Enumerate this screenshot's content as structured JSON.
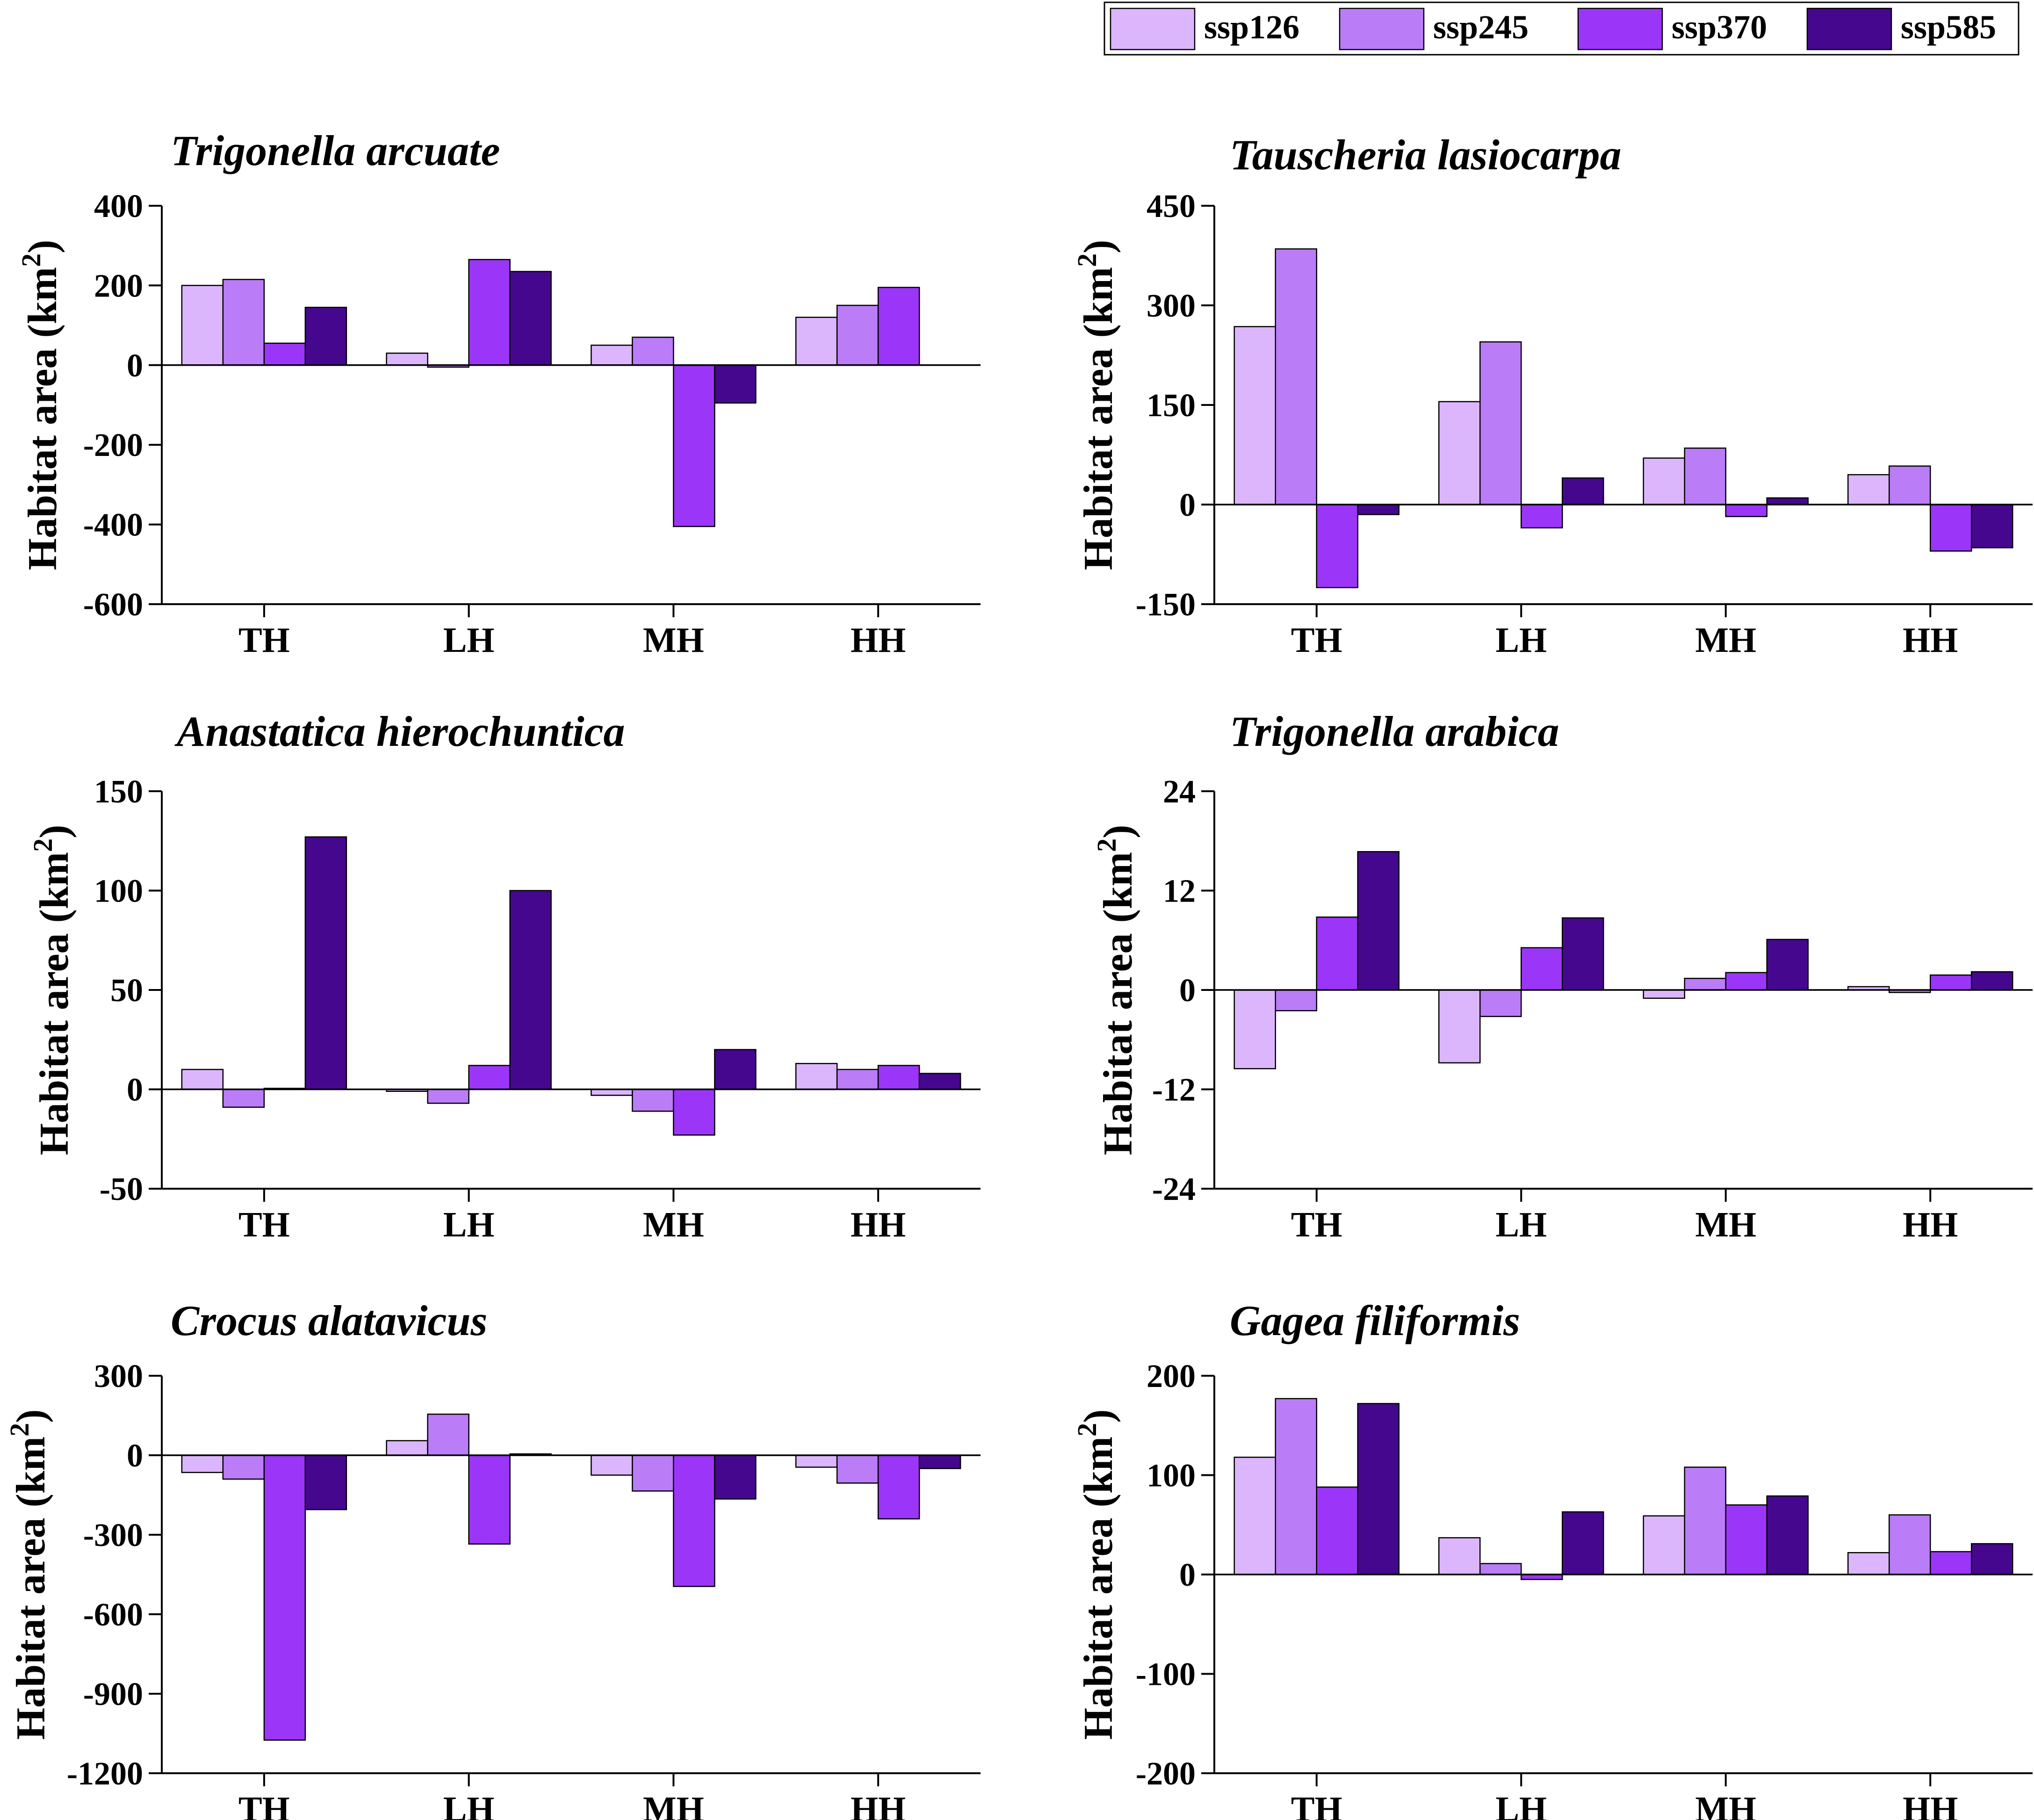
{
  "legend": {
    "entries": [
      {
        "name": "ssp126",
        "color": "#dcb6fc"
      },
      {
        "name": "ssp245",
        "color": "#bb7cf8"
      },
      {
        "name": "ssp370",
        "color": "#9b36f9"
      },
      {
        "name": "ssp585",
        "color": "#46078f"
      }
    ]
  },
  "chart_data": [
    {
      "type": "bar",
      "title": "Trigonella arcuate",
      "ylabel": "Habitat area (km",
      "ylabel_sup": "2",
      "ylabel_close": ")",
      "categories": [
        "TH",
        "LH",
        "MH",
        "HH"
      ],
      "ylim": [
        -600,
        400
      ],
      "yticks": [
        400,
        200,
        0,
        -200,
        -400,
        -600
      ],
      "series": [
        {
          "name": "ssp126",
          "values": [
            200,
            30,
            50,
            120
          ]
        },
        {
          "name": "ssp245",
          "values": [
            215,
            -5,
            70,
            150
          ]
        },
        {
          "name": "ssp370",
          "values": [
            55,
            265,
            -405,
            195
          ]
        },
        {
          "name": "ssp585",
          "values": [
            145,
            235,
            -95,
            0
          ]
        }
      ]
    },
    {
      "type": "bar",
      "title": "Tauscheria lasiocarpa",
      "ylabel": "Habitat area (km",
      "ylabel_sup": "2",
      "ylabel_close": ")",
      "categories": [
        "TH",
        "LH",
        "MH",
        "HH"
      ],
      "ylim": [
        -150,
        450
      ],
      "yticks": [
        450,
        300,
        150,
        0,
        -150
      ],
      "series": [
        {
          "name": "ssp126",
          "values": [
            268,
            155,
            70,
            45
          ]
        },
        {
          "name": "ssp245",
          "values": [
            385,
            245,
            85,
            58
          ]
        },
        {
          "name": "ssp370",
          "values": [
            -125,
            -35,
            -18,
            -70
          ]
        },
        {
          "name": "ssp585",
          "values": [
            -15,
            40,
            10,
            -65
          ]
        }
      ]
    },
    {
      "type": "bar",
      "title": "Anastatica hierochuntica",
      "ylabel": "Habitat area (km",
      "ylabel_sup": "2",
      "ylabel_close": ")",
      "categories": [
        "TH",
        "LH",
        "MH",
        "HH"
      ],
      "ylim": [
        -50,
        150
      ],
      "yticks": [
        150,
        100,
        50,
        0,
        -50
      ],
      "series": [
        {
          "name": "ssp126",
          "values": [
            10,
            -1,
            -3,
            13
          ]
        },
        {
          "name": "ssp245",
          "values": [
            -9,
            -7,
            -11,
            10
          ]
        },
        {
          "name": "ssp370",
          "values": [
            0.5,
            12,
            -23,
            12
          ]
        },
        {
          "name": "ssp585",
          "values": [
            127,
            100,
            20,
            8
          ]
        }
      ]
    },
    {
      "type": "bar",
      "title": "Trigonella arabica",
      "ylabel": "Habitat area (km",
      "ylabel_sup": "2",
      "ylabel_close": ")",
      "categories": [
        "TH",
        "LH",
        "MH",
        "HH"
      ],
      "ylim": [
        -24,
        24
      ],
      "yticks": [
        24,
        12,
        0,
        -12,
        -24
      ],
      "series": [
        {
          "name": "ssp126",
          "values": [
            -9.5,
            -8.8,
            -1,
            0.4
          ]
        },
        {
          "name": "ssp245",
          "values": [
            -2.5,
            -3.2,
            1.4,
            -0.3
          ]
        },
        {
          "name": "ssp370",
          "values": [
            8.8,
            5.1,
            2.1,
            1.8
          ]
        },
        {
          "name": "ssp585",
          "values": [
            16.7,
            8.7,
            6.1,
            2.2
          ]
        }
      ]
    },
    {
      "type": "bar",
      "title": "Crocus alatavicus",
      "ylabel": "Habitat area (km",
      "ylabel_sup": "2",
      "ylabel_close": ")",
      "categories": [
        "TH",
        "LH",
        "MH",
        "HH"
      ],
      "ylim": [
        -1200,
        300
      ],
      "yticks": [
        300,
        0,
        -300,
        -600,
        -900,
        -1200
      ],
      "series": [
        {
          "name": "ssp126",
          "values": [
            -65,
            55,
            -75,
            -45
          ]
        },
        {
          "name": "ssp245",
          "values": [
            -90,
            155,
            -135,
            -105
          ]
        },
        {
          "name": "ssp370",
          "values": [
            -1075,
            -335,
            -495,
            -240
          ]
        },
        {
          "name": "ssp585",
          "values": [
            -205,
            5,
            -165,
            -50
          ]
        }
      ]
    },
    {
      "type": "bar",
      "title": "Gagea filiformis",
      "ylabel": "Habitat area (km",
      "ylabel_sup": "2",
      "ylabel_close": ")",
      "categories": [
        "TH",
        "LH",
        "MH",
        "HH"
      ],
      "ylim": [
        -200,
        200
      ],
      "yticks": [
        200,
        100,
        0,
        -100,
        -200
      ],
      "series": [
        {
          "name": "ssp126",
          "values": [
            118,
            37,
            59,
            22
          ]
        },
        {
          "name": "ssp245",
          "values": [
            177,
            11,
            108,
            60
          ]
        },
        {
          "name": "ssp370",
          "values": [
            88,
            -5,
            70,
            23
          ]
        },
        {
          "name": "ssp585",
          "values": [
            172,
            63,
            79,
            31
          ]
        }
      ]
    }
  ]
}
